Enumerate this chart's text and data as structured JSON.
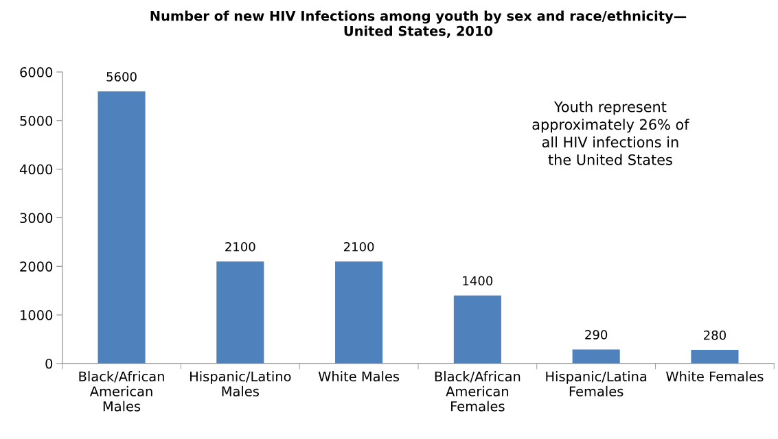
{
  "chart_data": {
    "type": "bar",
    "title": "Number of new HIV Infections among youth by sex and race/ethnicity—\nUnited States, 2010",
    "categories": [
      "Black/African\nAmerican\nMales",
      "Hispanic/Latino\nMales",
      "White Males",
      "Black/African\nAmerican\nFemales",
      "Hispanic/Latina\nFemales",
      "White Females"
    ],
    "values": [
      5600,
      2100,
      2100,
      1400,
      290,
      280
    ],
    "color": "#4f81bd",
    "ylim": [
      0,
      6000
    ],
    "yticks": [
      0,
      1000,
      2000,
      3000,
      4000,
      5000,
      6000
    ],
    "data_labels": true,
    "annotations": [
      "Youth represent\napproximately 26% of\nall HIV infections in\nthe United States"
    ]
  }
}
